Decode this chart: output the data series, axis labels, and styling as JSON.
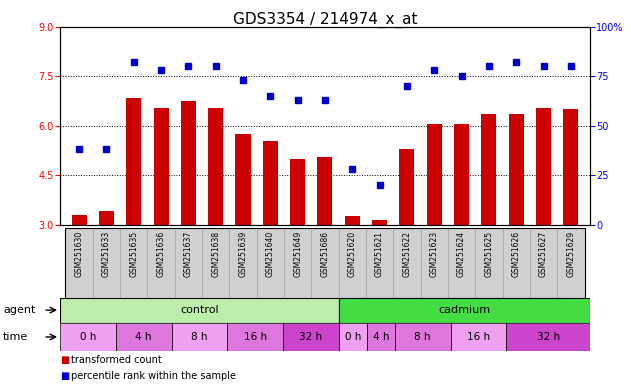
{
  "title": "GDS3354 / 214974_x_at",
  "samples": [
    "GSM251630",
    "GSM251633",
    "GSM251635",
    "GSM251636",
    "GSM251637",
    "GSM251638",
    "GSM251639",
    "GSM251640",
    "GSM251649",
    "GSM251686",
    "GSM251620",
    "GSM251621",
    "GSM251622",
    "GSM251623",
    "GSM251624",
    "GSM251625",
    "GSM251626",
    "GSM251627",
    "GSM251629"
  ],
  "bar_values": [
    3.3,
    3.4,
    6.85,
    6.55,
    6.75,
    6.55,
    5.75,
    5.55,
    5.0,
    5.05,
    3.25,
    3.15,
    5.3,
    6.05,
    6.05,
    6.35,
    6.35,
    6.55,
    6.5
  ],
  "dot_values": [
    38,
    38,
    82,
    78,
    80,
    80,
    73,
    65,
    63,
    63,
    28,
    20,
    70,
    78,
    75,
    80,
    82,
    80,
    80
  ],
  "ylim_left": [
    3,
    9
  ],
  "ylim_right": [
    0,
    100
  ],
  "yticks_left": [
    3,
    4.5,
    6,
    7.5,
    9
  ],
  "yticks_right": [
    0,
    25,
    50,
    75,
    100
  ],
  "bar_color": "#cc0000",
  "dot_color": "#0000cc",
  "agent_control_color": "#bbeeaa",
  "agent_cadmium_color": "#44dd44",
  "time_slots_control": [
    {
      "label": "0 h",
      "count": 2,
      "color": "#f0a0f0"
    },
    {
      "label": "4 h",
      "count": 2,
      "color": "#dd77dd"
    },
    {
      "label": "8 h",
      "count": 2,
      "color": "#f0a0f0"
    },
    {
      "label": "16 h",
      "count": 2,
      "color": "#dd77dd"
    },
    {
      "label": "32 h",
      "count": 2,
      "color": "#cc44cc"
    }
  ],
  "time_slots_cadmium": [
    {
      "label": "0 h",
      "count": 1,
      "color": "#f0a0f0"
    },
    {
      "label": "4 h",
      "count": 1,
      "color": "#dd77dd"
    },
    {
      "label": "8 h",
      "count": 2,
      "color": "#dd77dd"
    },
    {
      "label": "16 h",
      "count": 2,
      "color": "#f0a0f0"
    },
    {
      "label": "32 h",
      "count": 3,
      "color": "#cc44cc"
    }
  ],
  "control_label": "control",
  "cadmium_label": "cadmium",
  "agent_row_label": "agent",
  "time_row_label": "time",
  "legend_bar_label": "transformed count",
  "legend_dot_label": "percentile rank within the sample",
  "title_fontsize": 11,
  "tick_fontsize": 7,
  "label_fontsize": 8
}
